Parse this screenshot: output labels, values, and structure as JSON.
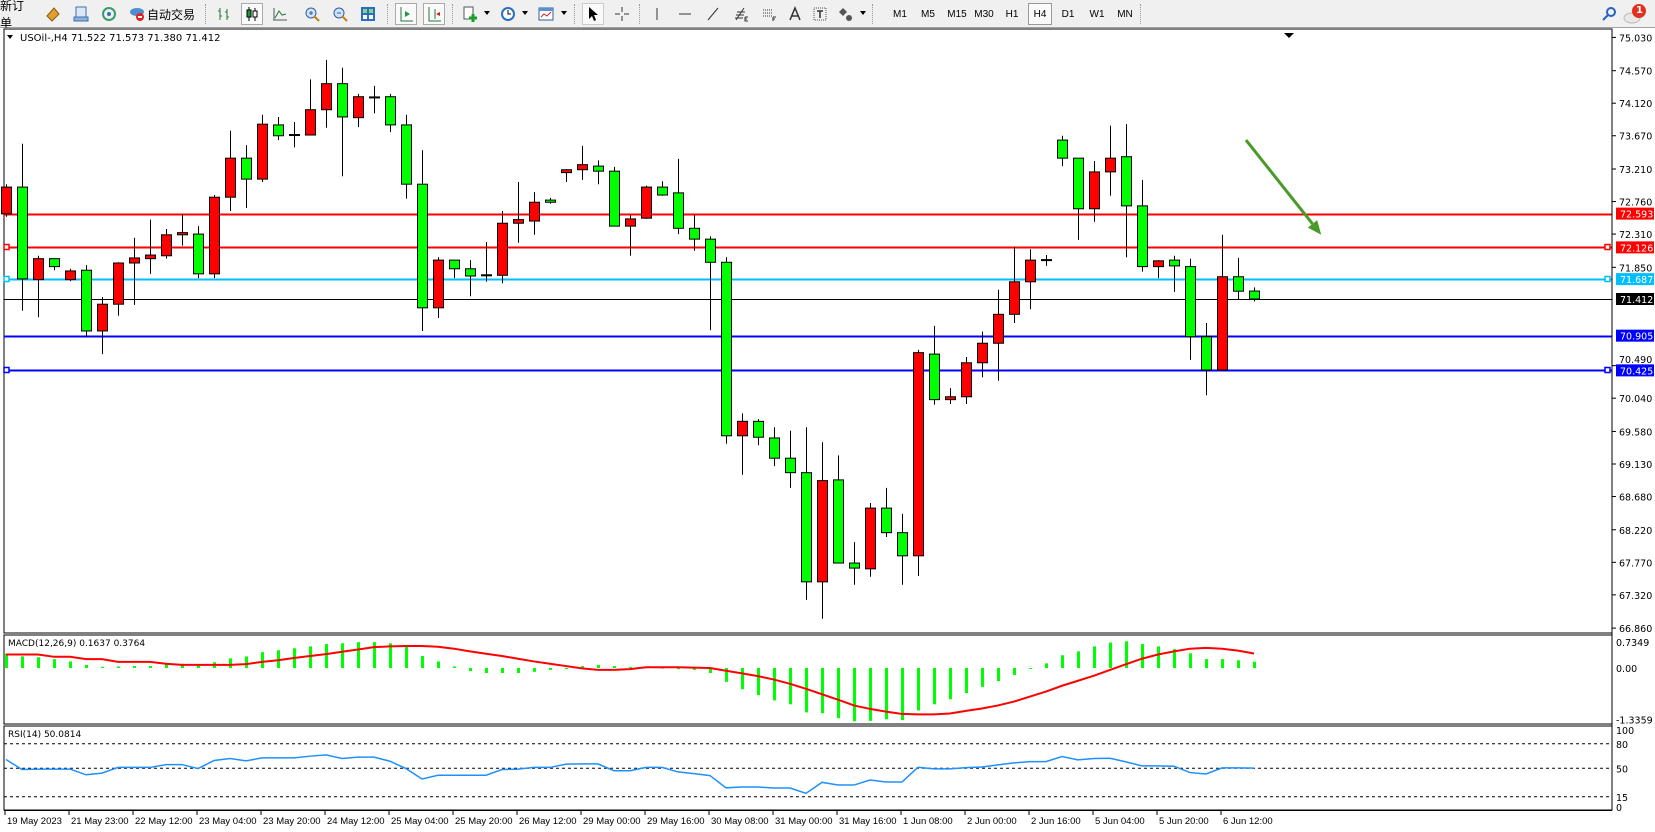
{
  "toolbar": {
    "new_order_label": "新订单",
    "auto_trading_label": "自动交易",
    "icons": [
      "market-watch-icon",
      "data-window-icon",
      "signals-icon",
      "auto-trading-icon",
      "bar-chart-icon",
      "candlestick-icon",
      "line-chart-icon",
      "zoom-in-icon",
      "zoom-out-icon",
      "tile-windows-icon",
      "auto-scroll-icon",
      "chart-shift-icon",
      "indicators-icon",
      "periodicity-icon",
      "templates-icon",
      "cursor-icon",
      "crosshair-icon",
      "vertical-line-icon",
      "horizontal-line-icon",
      "trendline-icon",
      "fibonacci-icon",
      "fibo-fan-icon",
      "text-icon",
      "text-label-icon",
      "shapes-icon"
    ],
    "timeframes": [
      "M1",
      "M5",
      "M15",
      "M30",
      "H1",
      "H4",
      "D1",
      "W1",
      "MN"
    ],
    "active_timeframe": "H4",
    "notification_count": "1"
  },
  "chart": {
    "header": "USOil-,H4  71.522 71.573 71.380 71.412",
    "up_color": "#ff0000",
    "down_color": "#00ff00",
    "price_ticks": [
      "75.030",
      "74.570",
      "74.120",
      "73.670",
      "73.210",
      "72.760",
      "72.310",
      "71.850",
      "70.490",
      "70.040",
      "69.580",
      "69.130",
      "68.680",
      "68.220",
      "67.770",
      "67.320",
      "66.860"
    ],
    "levels": [
      {
        "price": 72.593,
        "label": "72.593",
        "color": "#ff0000",
        "handles": false
      },
      {
        "price": 72.126,
        "label": "72.126",
        "color": "#ff0000",
        "handles": true
      },
      {
        "price": 71.687,
        "label": "71.687",
        "color": "#00bfff",
        "handles": true
      },
      {
        "price": 71.412,
        "label": "71.412",
        "color": "#000000",
        "handles": false
      },
      {
        "price": 70.905,
        "label": "70.905",
        "color": "#0000ff",
        "handles": false
      },
      {
        "price": 70.425,
        "label": "70.425",
        "color": "#0000ff",
        "handles": true
      }
    ],
    "arrow": {
      "color": "#4a9a2a",
      "from": {
        "candle": 77.5,
        "price": 73.61
      },
      "to": {
        "candle": 82.2,
        "price": 72.3
      }
    },
    "ohlc": [
      [
        72.59,
        73.0,
        72.55,
        72.96
      ],
      [
        72.96,
        73.56,
        71.25,
        71.69
      ],
      [
        71.68,
        72.01,
        71.16,
        71.97
      ],
      [
        71.97,
        71.97,
        71.81,
        71.86
      ],
      [
        71.68,
        71.83,
        71.66,
        71.8
      ],
      [
        71.81,
        71.88,
        70.89,
        70.97
      ],
      [
        70.97,
        71.44,
        70.65,
        71.34
      ],
      [
        71.34,
        71.92,
        71.18,
        71.91
      ],
      [
        71.91,
        72.26,
        71.33,
        71.98
      ],
      [
        71.97,
        72.51,
        71.76,
        72.02
      ],
      [
        72.01,
        72.38,
        71.97,
        72.3
      ],
      [
        72.3,
        72.59,
        72.15,
        72.33
      ],
      [
        72.31,
        72.42,
        71.7,
        71.76
      ],
      [
        71.76,
        72.85,
        71.7,
        72.82
      ],
      [
        72.82,
        73.74,
        72.63,
        73.36
      ],
      [
        73.36,
        73.54,
        72.67,
        73.07
      ],
      [
        73.07,
        73.96,
        73.03,
        73.83
      ],
      [
        73.82,
        73.93,
        73.61,
        73.67
      ],
      [
        73.67,
        73.86,
        73.51,
        73.68
      ],
      [
        73.68,
        74.45,
        73.68,
        74.03
      ],
      [
        74.03,
        74.72,
        73.78,
        74.39
      ],
      [
        74.39,
        74.61,
        73.11,
        73.93
      ],
      [
        73.92,
        74.25,
        73.79,
        74.21
      ],
      [
        74.19,
        74.36,
        73.98,
        74.2
      ],
      [
        74.21,
        74.25,
        73.72,
        73.82
      ],
      [
        73.82,
        73.96,
        72.8,
        73.0
      ],
      [
        73.0,
        73.47,
        70.97,
        71.29
      ],
      [
        71.29,
        71.99,
        71.15,
        71.95
      ],
      [
        71.95,
        71.95,
        71.7,
        71.83
      ],
      [
        71.83,
        71.95,
        71.45,
        71.73
      ],
      [
        71.73,
        72.2,
        71.65,
        71.74
      ],
      [
        71.74,
        72.63,
        71.63,
        72.46
      ],
      [
        72.46,
        73.03,
        72.19,
        72.51
      ],
      [
        72.49,
        72.89,
        72.3,
        72.75
      ],
      [
        72.78,
        72.81,
        72.73,
        72.75
      ],
      [
        73.16,
        73.21,
        73.03,
        73.2
      ],
      [
        73.2,
        73.53,
        73.06,
        73.27
      ],
      [
        73.25,
        73.33,
        73.0,
        73.18
      ],
      [
        73.18,
        73.24,
        72.42,
        72.42
      ],
      [
        72.42,
        72.57,
        72.01,
        72.52
      ],
      [
        72.53,
        72.98,
        72.52,
        72.96
      ],
      [
        72.96,
        73.04,
        72.84,
        72.85
      ],
      [
        72.88,
        73.35,
        72.31,
        72.39
      ],
      [
        72.39,
        72.57,
        72.08,
        72.24
      ],
      [
        72.24,
        72.28,
        70.98,
        71.92
      ],
      [
        71.92,
        71.99,
        69.41,
        69.52
      ],
      [
        69.52,
        69.83,
        68.98,
        69.72
      ],
      [
        69.72,
        69.75,
        69.39,
        69.5
      ],
      [
        69.49,
        69.64,
        69.1,
        69.21
      ],
      [
        69.21,
        69.59,
        68.8,
        69.01
      ],
      [
        69.01,
        69.64,
        67.25,
        67.5
      ],
      [
        67.5,
        69.43,
        66.99,
        68.9
      ],
      [
        68.91,
        69.25,
        67.76,
        67.76
      ],
      [
        67.76,
        68.05,
        67.46,
        67.69
      ],
      [
        67.68,
        68.59,
        67.57,
        68.52
      ],
      [
        68.52,
        68.8,
        68.12,
        68.18
      ],
      [
        68.18,
        68.44,
        67.46,
        67.86
      ],
      [
        67.86,
        70.71,
        67.58,
        70.67
      ],
      [
        70.65,
        71.04,
        69.95,
        70.02
      ],
      [
        70.02,
        70.18,
        69.96,
        70.06
      ],
      [
        70.06,
        70.61,
        69.96,
        70.53
      ],
      [
        70.53,
        70.96,
        70.33,
        70.8
      ],
      [
        70.8,
        71.54,
        70.28,
        71.2
      ],
      [
        71.2,
        72.13,
        71.08,
        71.65
      ],
      [
        71.65,
        72.1,
        71.27,
        71.95
      ],
      [
        71.95,
        72.02,
        71.87,
        71.95
      ],
      [
        73.61,
        73.67,
        73.25,
        73.36
      ],
      [
        73.36,
        73.36,
        72.23,
        72.66
      ],
      [
        72.66,
        73.32,
        72.48,
        73.17
      ],
      [
        73.17,
        73.81,
        72.84,
        73.36
      ],
      [
        73.38,
        73.83,
        71.99,
        72.7
      ],
      [
        72.7,
        73.06,
        71.79,
        71.86
      ],
      [
        71.86,
        71.95,
        71.7,
        71.94
      ],
      [
        71.95,
        72.01,
        71.51,
        71.87
      ],
      [
        71.86,
        71.97,
        70.57,
        70.89
      ],
      [
        70.89,
        71.08,
        70.08,
        70.43
      ],
      [
        70.43,
        72.3,
        70.43,
        71.72
      ],
      [
        71.72,
        71.98,
        71.41,
        71.52
      ],
      [
        71.522,
        71.573,
        71.38,
        71.412
      ]
    ],
    "time_labels": [
      {
        "candle": 0,
        "label": "19 May 2023"
      },
      {
        "candle": 4,
        "label": "21 May 23:00"
      },
      {
        "candle": 8,
        "label": "22 May 12:00"
      },
      {
        "candle": 12,
        "label": "23 May 04:00"
      },
      {
        "candle": 16,
        "label": "23 May 20:00"
      },
      {
        "candle": 20,
        "label": "24 May 12:00"
      },
      {
        "candle": 24,
        "label": "25 May 04:00"
      },
      {
        "candle": 28,
        "label": "25 May 20:00"
      },
      {
        "candle": 32,
        "label": "26 May 12:00"
      },
      {
        "candle": 36,
        "label": "29 May 00:00"
      },
      {
        "candle": 40,
        "label": "29 May 16:00"
      },
      {
        "candle": 44,
        "label": "30 May 08:00"
      },
      {
        "candle": 48,
        "label": "31 May 00:00"
      },
      {
        "candle": 52,
        "label": "31 May 16:00"
      },
      {
        "candle": 56,
        "label": "1 Jun 08:00"
      },
      {
        "candle": 60,
        "label": "2 Jun 00:00"
      },
      {
        "candle": 64,
        "label": "2 Jun 16:00"
      },
      {
        "candle": 68,
        "label": "5 Jun 04:00"
      },
      {
        "candle": 72,
        "label": "5 Jun 20:00"
      },
      {
        "candle": 76,
        "label": "6 Jun 12:00"
      }
    ]
  },
  "macd": {
    "header": "MACD(12,26,9) 0.1637 0.3764",
    "ticks": [
      "0.7349",
      "0.00",
      "-1.3359"
    ],
    "range": [
      -1.3359,
      0.7349
    ],
    "histogram_color": "#00ff00",
    "signal_color": "#ff0000",
    "histogram": [
      0.37,
      0.3,
      0.28,
      0.23,
      0.17,
      0.08,
      0.03,
      0.04,
      0.05,
      0.05,
      0.11,
      0.11,
      0.07,
      0.15,
      0.25,
      0.3,
      0.41,
      0.46,
      0.51,
      0.56,
      0.62,
      0.64,
      0.67,
      0.67,
      0.64,
      0.56,
      0.31,
      0.17,
      0.04,
      -0.08,
      -0.13,
      -0.13,
      -0.13,
      -0.1,
      -0.05,
      -0.03,
      0.05,
      0.08,
      0.05,
      0.03,
      0.03,
      0.01,
      -0.03,
      -0.05,
      -0.13,
      -0.36,
      -0.55,
      -0.7,
      -0.84,
      -0.94,
      -1.15,
      -1.17,
      -1.3,
      -1.38,
      -1.37,
      -1.33,
      -1.35,
      -1.1,
      -0.94,
      -0.81,
      -0.65,
      -0.49,
      -0.34,
      -0.18,
      -0.02,
      0.12,
      0.33,
      0.43,
      0.56,
      0.66,
      0.69,
      0.62,
      0.56,
      0.49,
      0.38,
      0.23,
      0.23,
      0.2,
      0.1637
    ],
    "signal": [
      0.35,
      0.35,
      0.35,
      0.29,
      0.29,
      0.23,
      0.23,
      0.16,
      0.16,
      0.16,
      0.11,
      0.08,
      0.08,
      0.08,
      0.08,
      0.1,
      0.16,
      0.2,
      0.26,
      0.31,
      0.36,
      0.42,
      0.48,
      0.54,
      0.56,
      0.57,
      0.57,
      0.55,
      0.5,
      0.43,
      0.37,
      0.31,
      0.24,
      0.17,
      0.11,
      0.05,
      -0.01,
      -0.05,
      -0.05,
      -0.03,
      0.02,
      0.02,
      0.02,
      0.01,
      0.0,
      -0.07,
      -0.14,
      -0.21,
      -0.3,
      -0.41,
      -0.54,
      -0.68,
      -0.82,
      -0.97,
      -1.06,
      -1.13,
      -1.19,
      -1.2,
      -1.2,
      -1.18,
      -1.11,
      -1.05,
      -0.97,
      -0.87,
      -0.74,
      -0.61,
      -0.46,
      -0.33,
      -0.2,
      -0.05,
      0.1,
      0.24,
      0.35,
      0.43,
      0.5,
      0.52,
      0.5,
      0.45,
      0.3764
    ]
  },
  "rsi": {
    "header": "RSI(14) 50.0814",
    "ticks": [
      "100",
      "80",
      "50",
      "15",
      "0"
    ],
    "levels": [
      80,
      50,
      15
    ],
    "line_color": "#1e90ff",
    "values": [
      60.7,
      48.4,
      49,
      49,
      49,
      42,
      44,
      51,
      51,
      51,
      54.5,
      54.5,
      49.6,
      59.5,
      62,
      59,
      62.7,
      62.7,
      62.7,
      64.8,
      66.4,
      62,
      63.6,
      63.6,
      58.6,
      49.6,
      36.8,
      41.4,
      41.4,
      41.4,
      41.4,
      48.4,
      49,
      51,
      51,
      55,
      55.3,
      55.3,
      47,
      47,
      51,
      51,
      45.5,
      43.4,
      41,
      26,
      27,
      27,
      25.7,
      25.7,
      19.2,
      32.7,
      29.4,
      29.4,
      35.6,
      33.1,
      33.1,
      51.2,
      49.2,
      49.2,
      50.8,
      51.6,
      54.1,
      56.6,
      58.2,
      58.2,
      64.4,
      60.3,
      62,
      62.3,
      57.8,
      52.9,
      52.9,
      52.5,
      44.7,
      43,
      50.4,
      50.4,
      50.0814
    ]
  }
}
